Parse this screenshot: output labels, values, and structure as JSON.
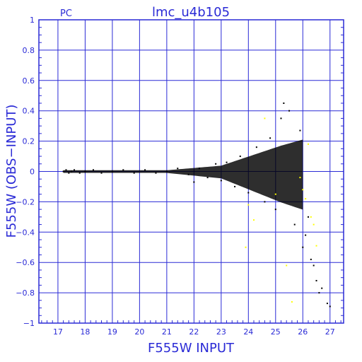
{
  "chart_data": {
    "type": "scatter",
    "title": "lmc_u4b105",
    "corner_label": "PC",
    "xlabel": "F555W INPUT",
    "ylabel": "F555W (OBS−INPUT)",
    "xlim": [
      16.3,
      27.5
    ],
    "ylim": [
      -1,
      1
    ],
    "xticks": [
      "17",
      "18",
      "19",
      "20",
      "21",
      "22",
      "23",
      "24",
      "25",
      "26",
      "27"
    ],
    "yticks": [
      "1",
      "0.8",
      "0.6",
      "0.4",
      "0.2",
      "0",
      "−0.2",
      "−0.4",
      "−0.6",
      "−0.8",
      "−1"
    ],
    "grid": true,
    "colors": {
      "frame": "#2a2ad6",
      "grid": "#2a2ad6",
      "points": "#000000",
      "highlight": "#ffff00"
    },
    "series": [
      {
        "values": [
          [
            17.2,
            0.0
          ],
          [
            17.3,
            0.01
          ],
          [
            17.4,
            -0.01
          ],
          [
            17.5,
            0.0
          ],
          [
            17.6,
            0.01
          ],
          [
            17.8,
            -0.01
          ],
          [
            18.0,
            0.0
          ],
          [
            18.3,
            0.01
          ],
          [
            18.6,
            -0.01
          ],
          [
            19.0,
            0.0
          ],
          [
            19.4,
            0.01
          ],
          [
            19.8,
            -0.01
          ],
          [
            20.2,
            0.01
          ],
          [
            20.6,
            -0.01
          ],
          [
            21.0,
            0.0
          ],
          [
            21.4,
            0.02
          ],
          [
            21.8,
            -0.02
          ],
          [
            22.0,
            -0.07
          ],
          [
            22.2,
            0.02
          ],
          [
            22.5,
            -0.04
          ],
          [
            22.8,
            0.05
          ],
          [
            23.0,
            -0.06
          ],
          [
            23.2,
            0.06
          ],
          [
            23.5,
            -0.1
          ],
          [
            23.7,
            0.1
          ],
          [
            24.0,
            -0.14
          ],
          [
            24.3,
            0.16
          ],
          [
            24.6,
            -0.2
          ],
          [
            24.8,
            0.22
          ],
          [
            25.0,
            -0.25
          ],
          [
            25.2,
            0.35
          ],
          [
            25.3,
            0.45
          ],
          [
            25.5,
            0.4
          ],
          [
            25.7,
            -0.35
          ],
          [
            25.9,
            0.27
          ],
          [
            26.0,
            -0.5
          ],
          [
            26.1,
            -0.42
          ],
          [
            26.2,
            -0.3
          ],
          [
            26.3,
            -0.58
          ],
          [
            26.4,
            -0.62
          ],
          [
            26.5,
            -0.72
          ],
          [
            26.6,
            -0.8
          ],
          [
            26.7,
            -0.77
          ],
          [
            26.9,
            -0.87
          ],
          [
            27.0,
            -0.89
          ]
        ]
      },
      {
        "values": [
          [
            23.9,
            -0.5
          ],
          [
            24.0,
            -0.22
          ],
          [
            24.2,
            -0.32
          ],
          [
            24.6,
            0.35
          ],
          [
            25.0,
            -0.15
          ],
          [
            25.4,
            -0.62
          ],
          [
            25.6,
            -0.86
          ],
          [
            25.9,
            -0.04
          ],
          [
            26.0,
            -0.12
          ],
          [
            26.1,
            -0.18
          ],
          [
            26.2,
            0.18
          ],
          [
            26.3,
            -0.3
          ],
          [
            26.4,
            -0.35
          ],
          [
            26.5,
            -0.49
          ]
        ]
      }
    ]
  }
}
